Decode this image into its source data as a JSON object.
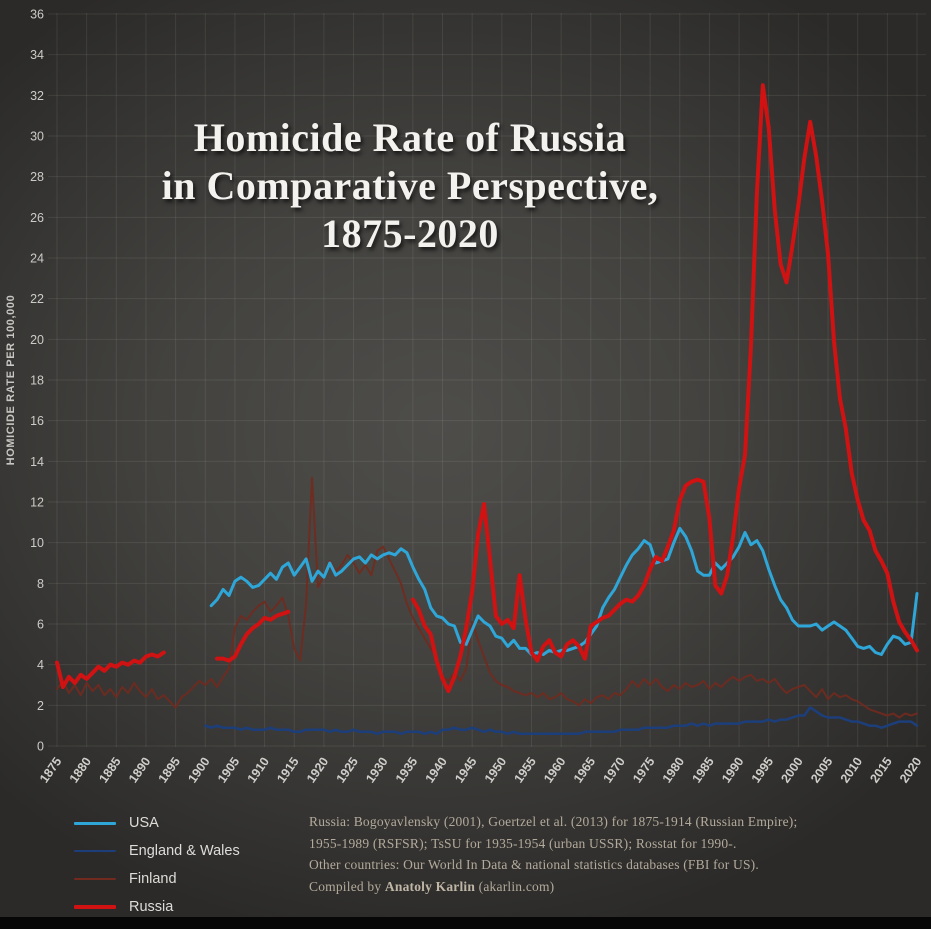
{
  "title": {
    "line1": "Homicide Rate of Russia",
    "line2": "in Comparative Perspective,",
    "line3": "1875-2020"
  },
  "notes": {
    "line1": "Russia: Bogoyavlensky (2001), Goertzel et al. (2013) for 1875-1914 (Russian Empire);",
    "line2": "1955-1989 (RSFSR); TsSU for 1935-1954 (urban USSR); Rosstat for 1990-.",
    "line3": "Other countries: Our World In Data & national statistics databases (FBI for US).",
    "compiled_prefix": "Compiled by ",
    "compiled_name": "Anatoly Karlin",
    "compiled_suffix": " (akarlin.com)"
  },
  "chart_data": {
    "type": "line",
    "title": "Homicide Rate of Russia in Comparative Perspective, 1875-2020",
    "ylabel": "HOMICIDE RATE PER 100,000",
    "xlabel": "",
    "xlim": [
      1875,
      2020
    ],
    "ylim": [
      0,
      36
    ],
    "grid": true,
    "legend_position": "bottom-left",
    "x_ticks": [
      1875,
      1880,
      1885,
      1890,
      1895,
      1900,
      1905,
      1910,
      1915,
      1920,
      1925,
      1930,
      1935,
      1940,
      1945,
      1950,
      1955,
      1960,
      1965,
      1970,
      1975,
      1980,
      1985,
      1990,
      1995,
      2000,
      2005,
      2010,
      2015,
      2020
    ],
    "y_ticks": [
      0,
      2,
      4,
      6,
      8,
      10,
      12,
      14,
      16,
      18,
      20,
      22,
      24,
      26,
      28,
      30,
      32,
      34,
      36
    ],
    "series": [
      {
        "name": "USA",
        "color": "#2fa6d8",
        "width": 3,
        "z": 3,
        "opacity": 1,
        "segments": [
          {
            "start": 1901,
            "values": [
              6.9,
              7.2,
              7.7,
              7.4,
              8.1,
              8.3,
              8.1,
              7.8,
              7.9,
              8.2,
              8.5,
              8.2,
              8.8,
              9.0,
              8.4,
              8.8,
              9.2,
              8.1,
              8.6,
              8.3,
              9.0,
              8.4,
              8.6,
              8.9,
              9.2,
              9.3,
              9.0,
              9.4,
              9.2,
              9.4,
              9.5,
              9.4,
              9.7,
              9.5,
              8.8,
              8.2,
              7.7,
              6.8,
              6.4,
              6.3,
              6.0,
              5.9,
              5.1,
              5.0,
              5.7,
              6.4,
              6.1,
              5.9,
              5.4,
              5.3,
              4.9,
              5.2,
              4.8,
              4.8,
              4.5,
              4.6,
              4.5,
              4.7,
              4.6,
              4.7,
              4.7,
              4.8,
              4.9,
              5.1,
              5.5,
              5.9,
              6.8,
              7.3,
              7.7,
              8.3,
              8.9,
              9.4,
              9.7,
              10.1,
              9.9,
              9.0,
              9.1,
              9.2,
              10.0,
              10.7,
              10.3,
              9.6,
              8.6,
              8.4,
              8.4,
              9.0,
              8.7,
              9.0,
              9.3,
              9.8,
              10.5,
              9.9,
              10.1,
              9.6,
              8.7,
              7.9,
              7.2,
              6.8,
              6.2,
              5.9,
              5.9,
              5.9,
              6.0,
              5.7,
              5.9,
              6.1,
              5.9,
              5.7,
              5.3,
              4.9,
              4.8,
              4.9,
              4.6,
              4.5,
              5.0,
              5.4,
              5.3,
              5.0,
              5.1,
              7.5
            ]
          }
        ]
      },
      {
        "name": "England & Wales",
        "color": "#1c3f7c",
        "width": 2.5,
        "z": 2,
        "opacity": 1,
        "segments": [
          {
            "start": 1900,
            "values": [
              1.0,
              0.9,
              1.0,
              0.9,
              0.9,
              0.9,
              0.8,
              0.9,
              0.8,
              0.8,
              0.8,
              0.9,
              0.8,
              0.8,
              0.8,
              0.7,
              0.7,
              0.8,
              0.8,
              0.8,
              0.8,
              0.7,
              0.8,
              0.7,
              0.7,
              0.8,
              0.7,
              0.7,
              0.7,
              0.6,
              0.7,
              0.7,
              0.7,
              0.6,
              0.7,
              0.7,
              0.7,
              0.6,
              0.7,
              0.6,
              0.8,
              0.8,
              0.9,
              0.8,
              0.8,
              0.9,
              0.8,
              0.7,
              0.8,
              0.7,
              0.7,
              0.6,
              0.7,
              0.6,
              0.6,
              0.6,
              0.6,
              0.6,
              0.6,
              0.6,
              0.6,
              0.6,
              0.6,
              0.6,
              0.7,
              0.7,
              0.7,
              0.7,
              0.7,
              0.7,
              0.8,
              0.8,
              0.8,
              0.8,
              0.9,
              0.9,
              0.9,
              0.9,
              0.9,
              1.0,
              1.0,
              1.0,
              1.1,
              1.0,
              1.1,
              1.0,
              1.1,
              1.1,
              1.1,
              1.1,
              1.1,
              1.2,
              1.2,
              1.2,
              1.2,
              1.3,
              1.2,
              1.3,
              1.3,
              1.4,
              1.5,
              1.5,
              1.9,
              1.7,
              1.5,
              1.4,
              1.4,
              1.4,
              1.3,
              1.2,
              1.2,
              1.1,
              1.0,
              1.0,
              0.9,
              1.0,
              1.1,
              1.2,
              1.2,
              1.2,
              1.0
            ]
          }
        ]
      },
      {
        "name": "Finland",
        "color": "#722a1e",
        "width": 2,
        "z": 1,
        "opacity": 0.9,
        "segments": [
          {
            "start": 1875,
            "values": [
              2.8,
              3.2,
              2.6,
              3.0,
              2.5,
              3.1,
              2.7,
              3.0,
              2.5,
              2.8,
              2.4,
              2.9,
              2.6,
              3.1,
              2.7,
              2.4,
              2.8,
              2.3,
              2.5,
              2.2,
              1.9,
              2.4,
              2.6,
              2.9,
              3.2,
              3.0,
              3.3,
              2.9,
              3.4,
              3.8,
              5.8,
              6.4,
              6.2,
              6.6,
              6.9,
              7.1,
              6.6,
              6.9,
              7.3,
              6.4,
              4.8,
              4.2,
              7.0,
              13.2,
              7.8,
              8.4,
              9.1,
              8.6,
              8.9,
              9.4,
              9.0,
              8.5,
              8.9,
              8.4,
              9.6,
              9.8,
              9.2,
              8.6,
              8.0,
              7.0,
              6.3,
              5.8,
              5.3,
              4.8,
              4.4,
              3.4,
              3.2,
              3.6,
              3.2,
              3.8,
              6.1,
              5.2,
              4.4,
              3.6,
              3.2,
              3.0,
              2.9,
              2.7,
              2.6,
              2.5,
              2.6,
              2.4,
              2.6,
              2.3,
              2.4,
              2.6,
              2.3,
              2.2,
              2.0,
              2.3,
              2.1,
              2.4,
              2.5,
              2.3,
              2.6,
              2.5,
              2.8,
              3.2,
              2.9,
              3.3,
              3.0,
              3.3,
              2.9,
              2.7,
              3.0,
              2.8,
              3.1,
              2.9,
              3.0,
              3.2,
              2.8,
              3.1,
              2.9,
              3.2,
              3.4,
              3.2,
              3.4,
              3.5,
              3.2,
              3.3,
              3.1,
              3.3,
              2.9,
              2.6,
              2.8,
              2.9,
              3.0,
              2.7,
              2.4,
              2.8,
              2.3,
              2.6,
              2.4,
              2.5,
              2.3,
              2.2,
              2.0,
              1.8,
              1.7,
              1.6,
              1.5,
              1.6,
              1.4,
              1.6,
              1.5,
              1.6
            ]
          }
        ]
      },
      {
        "name": "Russia",
        "color": "#d01212",
        "width": 4,
        "z": 4,
        "opacity": 1,
        "segments": [
          {
            "start": 1875,
            "values": [
              4.1,
              2.9,
              3.4,
              3.1,
              3.5,
              3.3,
              3.6,
              3.9,
              3.7,
              4.0,
              3.9,
              4.1,
              4.0,
              4.2,
              4.1,
              4.4,
              4.5,
              4.4,
              4.6
            ]
          },
          {
            "start": 1902,
            "values": [
              4.3,
              4.3,
              4.2,
              4.4,
              5.0,
              5.5,
              5.8,
              6.0,
              6.3,
              6.2,
              6.4,
              6.5,
              6.6
            ]
          },
          {
            "start": 1935,
            "values": [
              7.2,
              6.7,
              5.9,
              5.5,
              4.2,
              3.3,
              2.7,
              3.4,
              4.4,
              5.8,
              7.6,
              10.4,
              11.9,
              9.2,
              6.4,
              6.0,
              6.2,
              5.8,
              8.4,
              6.2,
              4.6,
              4.2,
              4.9,
              5.2,
              4.6,
              4.4,
              5.0,
              5.2,
              4.9,
              4.3,
              5.9,
              6.1,
              6.3,
              6.4,
              6.7,
              7.0,
              7.2,
              7.1,
              7.4,
              7.9,
              8.7,
              9.3,
              9.1,
              9.8,
              10.6,
              12.1,
              12.8,
              13.0,
              13.1,
              13.0,
              11.2,
              7.9,
              7.5,
              8.4,
              10.3,
              12.7,
              14.3,
              19.6,
              27.2,
              32.5,
              30.4,
              26.4,
              23.7,
              22.8,
              24.6,
              26.6,
              28.9,
              30.7,
              29.0,
              26.8,
              24.2,
              19.9,
              17.1,
              15.6,
              13.4,
              12.1,
              11.1,
              10.6,
              9.6,
              9.1,
              8.5,
              7.1,
              6.1,
              5.6,
              5.2,
              4.7
            ]
          }
        ]
      }
    ]
  }
}
